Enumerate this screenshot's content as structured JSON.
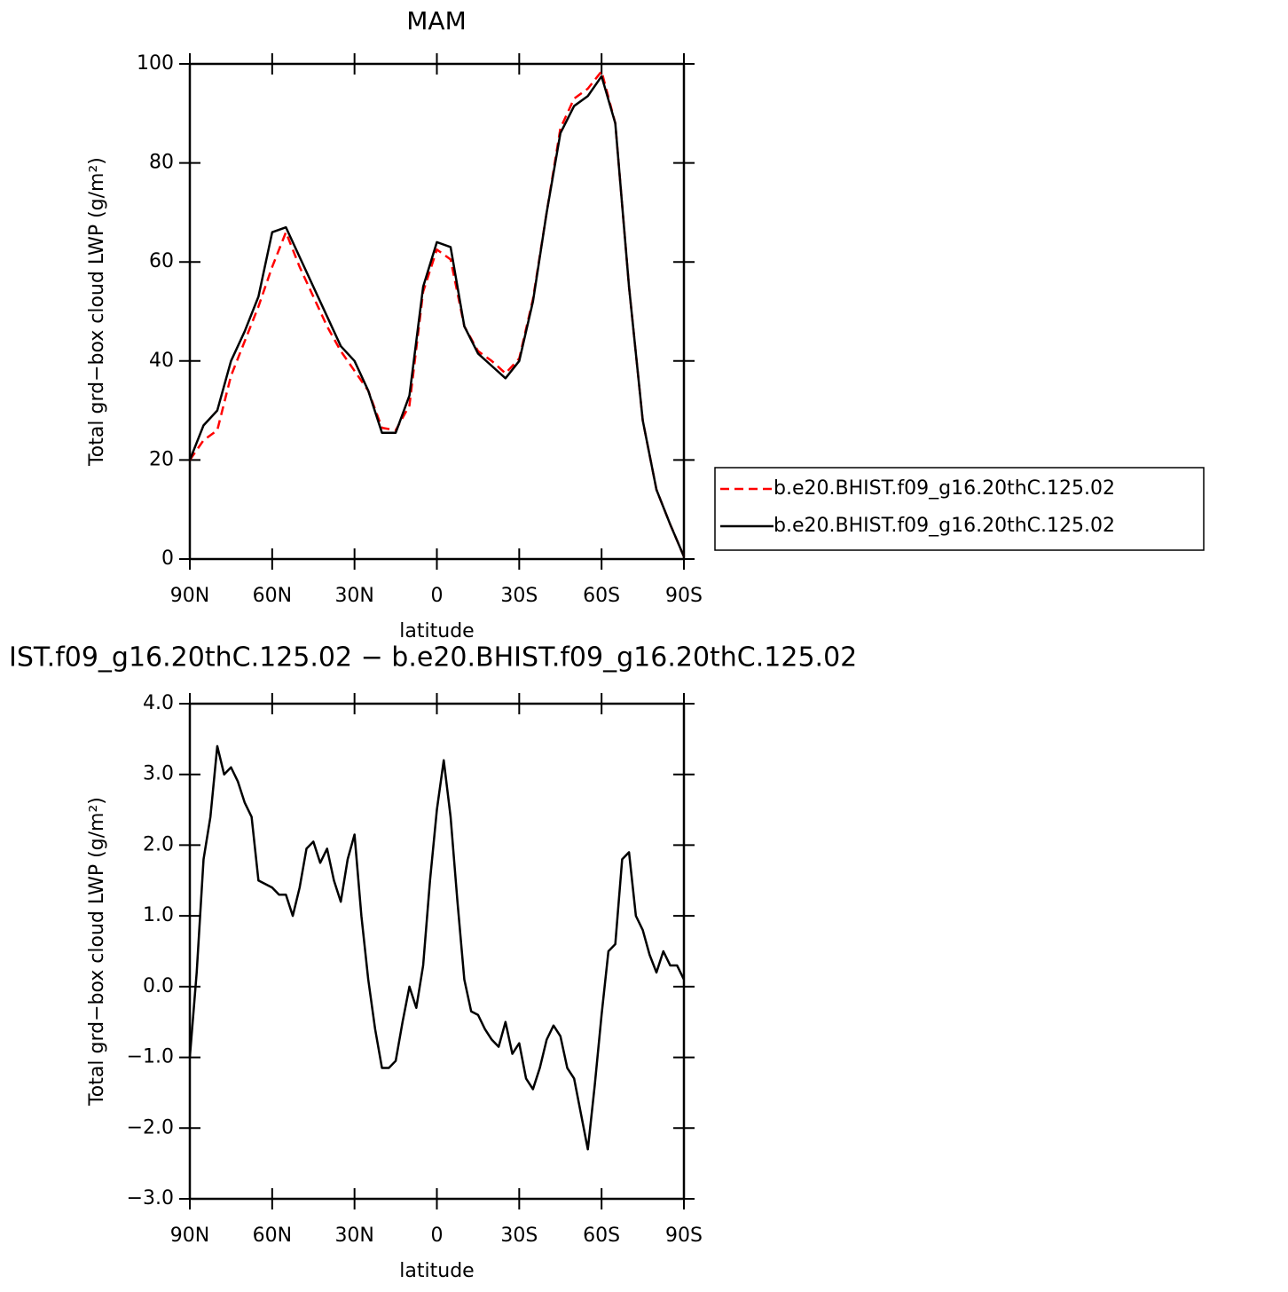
{
  "chart_data": [
    {
      "type": "line",
      "title": "MAM",
      "x_label": "latitude",
      "y_label": "Total grd−box cloud LWP (g/m²)",
      "x": [
        90,
        85,
        80,
        75,
        70,
        65,
        60,
        55,
        50,
        45,
        40,
        35,
        30,
        25,
        20,
        15,
        10,
        5,
        0,
        -5,
        -10,
        -15,
        -20,
        -25,
        -30,
        -35,
        -40,
        -45,
        -50,
        -55,
        -60,
        -65,
        -70,
        -75,
        -80,
        -85,
        -90
      ],
      "series": [
        {
          "name": "b.e20.BHIST.f09_g16.20thC.125.02",
          "color": "#ff0000",
          "style": "dashed",
          "values": [
            20,
            24,
            26,
            37,
            44,
            51,
            59,
            66,
            59,
            53,
            47,
            42,
            38,
            34,
            26.5,
            26,
            31,
            54,
            62.5,
            60.5,
            47,
            42,
            40,
            37.5,
            40.5,
            52.5,
            70,
            87,
            93,
            95,
            98.5,
            88,
            55,
            28,
            14,
            7,
            0.5
          ]
        },
        {
          "name": "b.e20.BHIST.f09_g16.20thC.125.02",
          "color": "#000000",
          "style": "solid",
          "values": [
            20,
            27,
            30,
            40,
            46,
            53,
            66,
            67,
            61,
            55,
            49,
            43,
            40,
            34,
            25.5,
            25.5,
            33,
            55,
            64,
            63,
            47,
            41.5,
            39,
            36.5,
            40,
            52,
            70,
            86,
            91.5,
            93.5,
            97.5,
            88,
            55,
            28,
            14,
            7,
            0.5
          ]
        }
      ],
      "xlim": [
        90,
        -90
      ],
      "xticks": [
        {
          "value": 90,
          "label": "90N"
        },
        {
          "value": 60,
          "label": "60N"
        },
        {
          "value": 30,
          "label": "30N"
        },
        0,
        {
          "value": -30,
          "label": "30S"
        },
        {
          "value": -60,
          "label": "60S"
        },
        {
          "value": -90,
          "label": "90S"
        }
      ],
      "ylim": [
        0,
        100
      ],
      "yticks": [
        0,
        20,
        40,
        60,
        80,
        100
      ],
      "legend_position": "right"
    },
    {
      "type": "line",
      "title": "IST.f09_g16.20thC.125.02 − b.e20.BHIST.f09_g16.20thC.125.02",
      "x_label": "latitude",
      "y_label": "Total grd−box cloud LWP (g/m²)",
      "x": [
        90,
        87.5,
        85,
        82.5,
        80,
        77.5,
        75,
        72.5,
        70,
        67.5,
        65,
        62.5,
        60,
        57.5,
        55,
        52.5,
        50,
        47.5,
        45,
        42.5,
        40,
        37.5,
        35,
        32.5,
        30,
        27.5,
        25,
        22.5,
        20,
        17.5,
        15,
        12.5,
        10,
        7.5,
        5,
        2.5,
        0,
        -2.5,
        -5,
        -7.5,
        -10,
        -12.5,
        -15,
        -17.5,
        -20,
        -22.5,
        -25,
        -27.5,
        -30,
        -32.5,
        -35,
        -37.5,
        -40,
        -42.5,
        -45,
        -47.5,
        -50,
        -52.5,
        -55,
        -57.5,
        -60,
        -62.5,
        -65,
        -67.5,
        -70,
        -72.5,
        -75,
        -77.5,
        -80,
        -82.5,
        -85,
        -87.5,
        -90
      ],
      "series": [
        {
          "color": "#000000",
          "style": "solid",
          "values": [
            -1.0,
            0.2,
            1.8,
            2.4,
            3.4,
            3.0,
            3.1,
            2.9,
            2.6,
            2.4,
            1.5,
            1.45,
            1.4,
            1.3,
            1.3,
            1.0,
            1.4,
            1.95,
            2.05,
            1.75,
            1.95,
            1.5,
            1.2,
            1.8,
            2.15,
            1.0,
            0.1,
            -0.6,
            -1.15,
            -1.15,
            -1.05,
            -0.5,
            0.0,
            -0.3,
            0.3,
            1.5,
            2.5,
            3.2,
            2.4,
            1.2,
            0.1,
            -0.35,
            -0.4,
            -0.6,
            -0.75,
            -0.85,
            -0.5,
            -0.95,
            -0.8,
            -1.3,
            -1.45,
            -1.15,
            -0.75,
            -0.55,
            -0.7,
            -1.15,
            -1.3,
            -1.8,
            -2.3,
            -1.4,
            -0.4,
            0.5,
            0.6,
            1.8,
            1.9,
            1.0,
            0.8,
            0.45,
            0.2,
            0.5,
            0.3,
            0.3,
            0.1
          ]
        }
      ],
      "xlim": [
        90,
        -90
      ],
      "xticks": [
        {
          "value": 90,
          "label": "90N"
        },
        {
          "value": 60,
          "label": "60N"
        },
        {
          "value": 30,
          "label": "30N"
        },
        0,
        {
          "value": -30,
          "label": "30S"
        },
        {
          "value": -60,
          "label": "60S"
        },
        {
          "value": -90,
          "label": "90S"
        }
      ],
      "ylim": [
        -3,
        4
      ],
      "yticks": [
        {
          "value": -3,
          "label": "−3.0"
        },
        {
          "value": -2,
          "label": "−2.0"
        },
        {
          "value": -1,
          "label": "−1.0"
        },
        {
          "value": 0,
          "label": "0.0"
        },
        {
          "value": 1,
          "label": "1.0"
        },
        {
          "value": 2,
          "label": "2.0"
        },
        {
          "value": 3,
          "label": "3.0"
        },
        {
          "value": 4,
          "label": "4.0"
        }
      ]
    }
  ]
}
